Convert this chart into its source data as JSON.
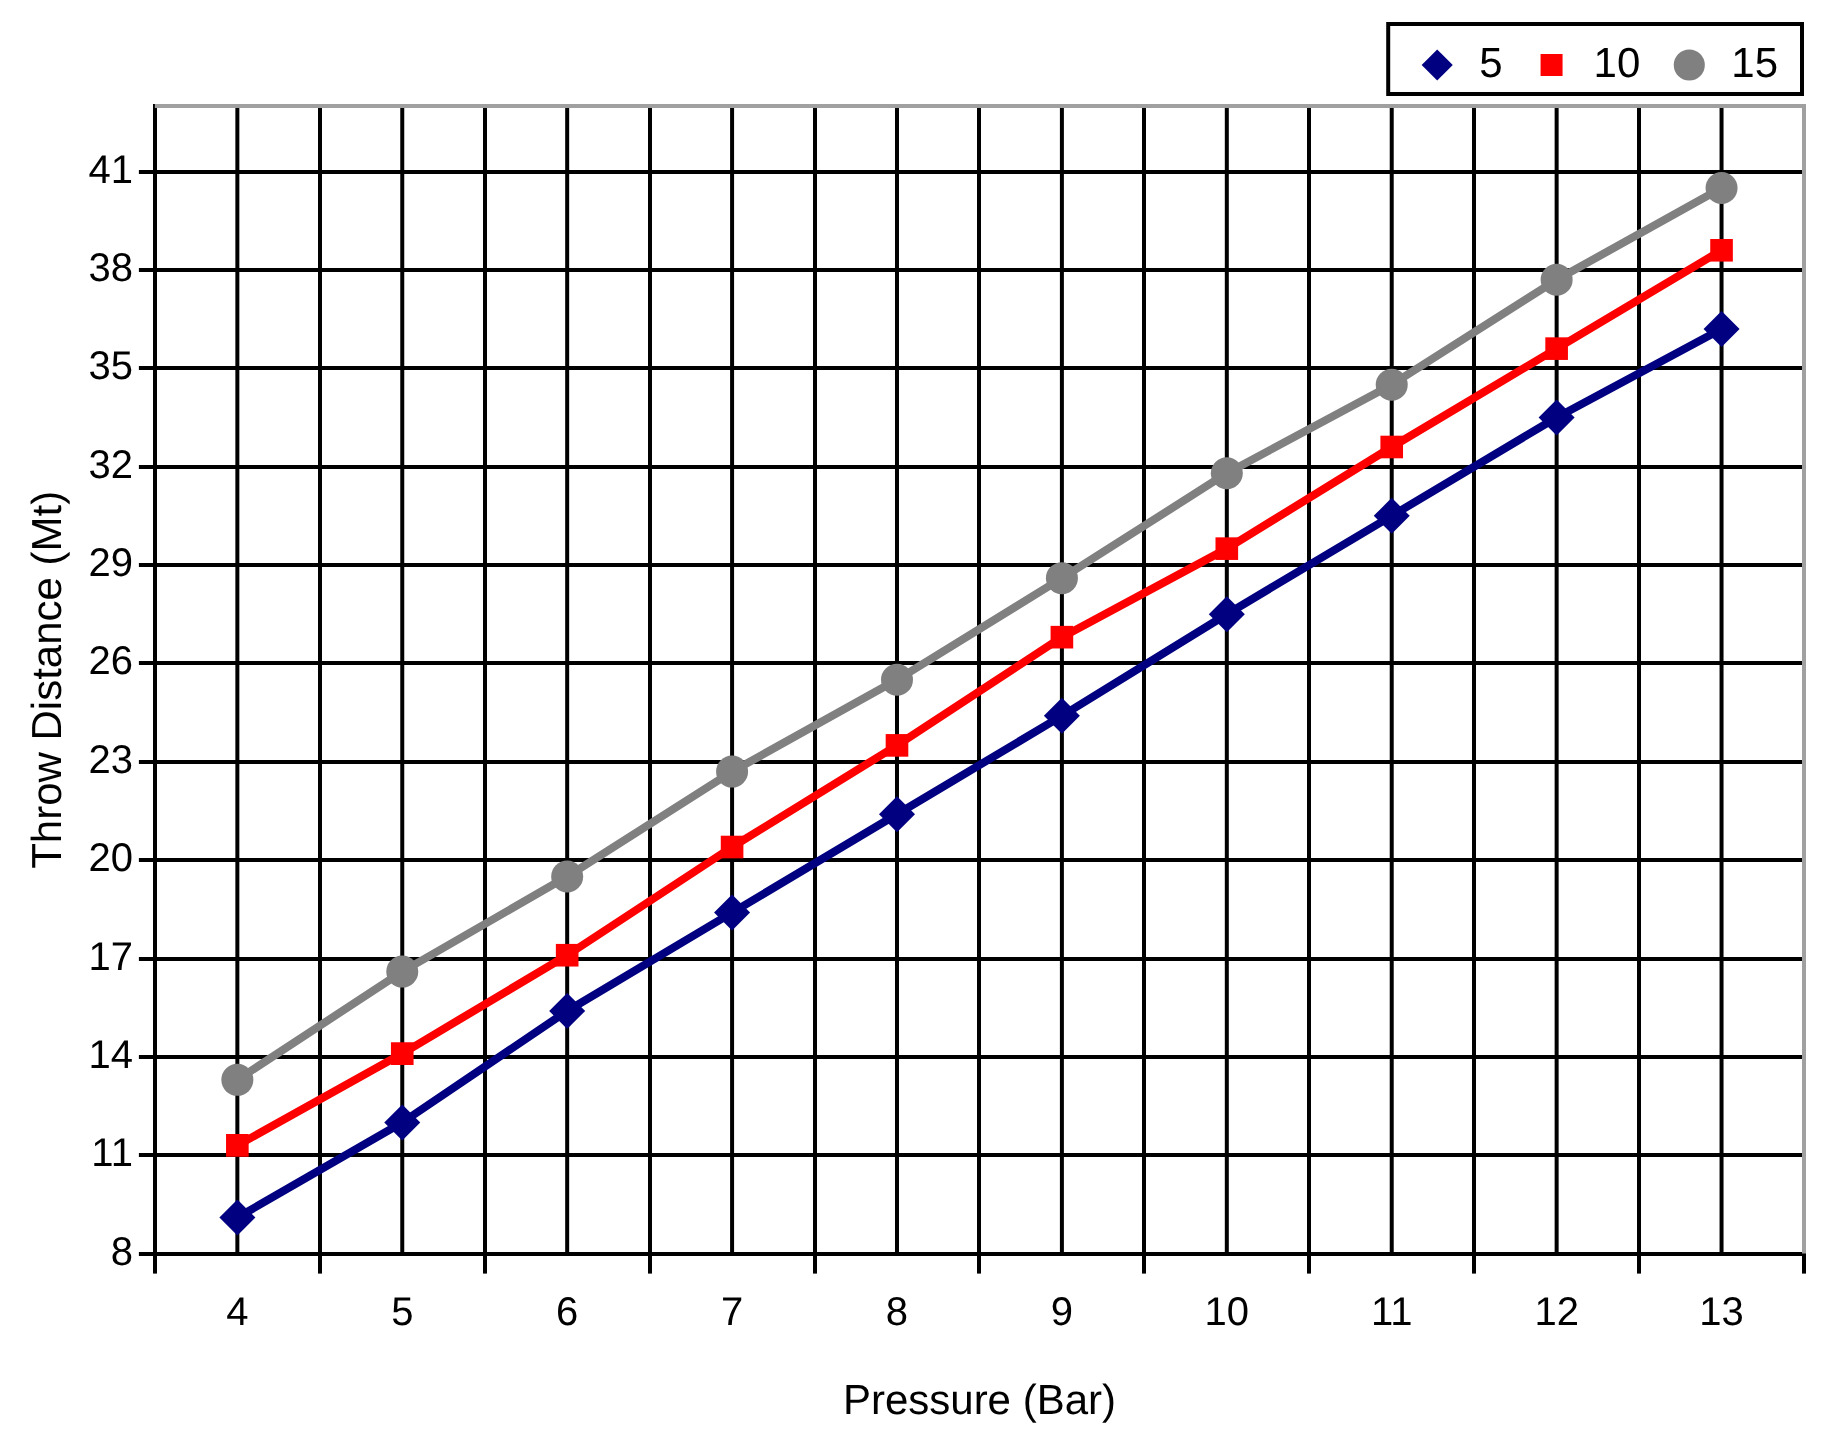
{
  "chart_data": {
    "type": "line",
    "xlabel": "Pressure (Bar)",
    "ylabel": "Throw Distance (Mt)",
    "categories": [
      "4",
      "5",
      "6",
      "7",
      "8",
      "9",
      "10",
      "11",
      "12",
      "13"
    ],
    "series": [
      {
        "name": "5",
        "color": "#000080",
        "marker": "diamond",
        "values": [
          9.1,
          12.0,
          15.4,
          18.4,
          21.4,
          24.4,
          27.5,
          30.5,
          33.5,
          36.2
        ]
      },
      {
        "name": "10",
        "color": "#ff0000",
        "marker": "square",
        "values": [
          11.3,
          14.1,
          17.1,
          20.4,
          23.5,
          26.8,
          29.5,
          32.6,
          35.6,
          38.6
        ]
      },
      {
        "name": "15",
        "color": "#808080",
        "marker": "circle",
        "values": [
          13.3,
          16.6,
          19.5,
          22.7,
          25.5,
          28.6,
          31.8,
          34.5,
          37.7,
          40.5
        ]
      }
    ],
    "ylim": [
      8,
      43
    ],
    "yticks": [
      8,
      11,
      14,
      17,
      20,
      23,
      26,
      29,
      32,
      35,
      38,
      41
    ],
    "grid": true,
    "legend": "top right",
    "line_style": "solid"
  }
}
